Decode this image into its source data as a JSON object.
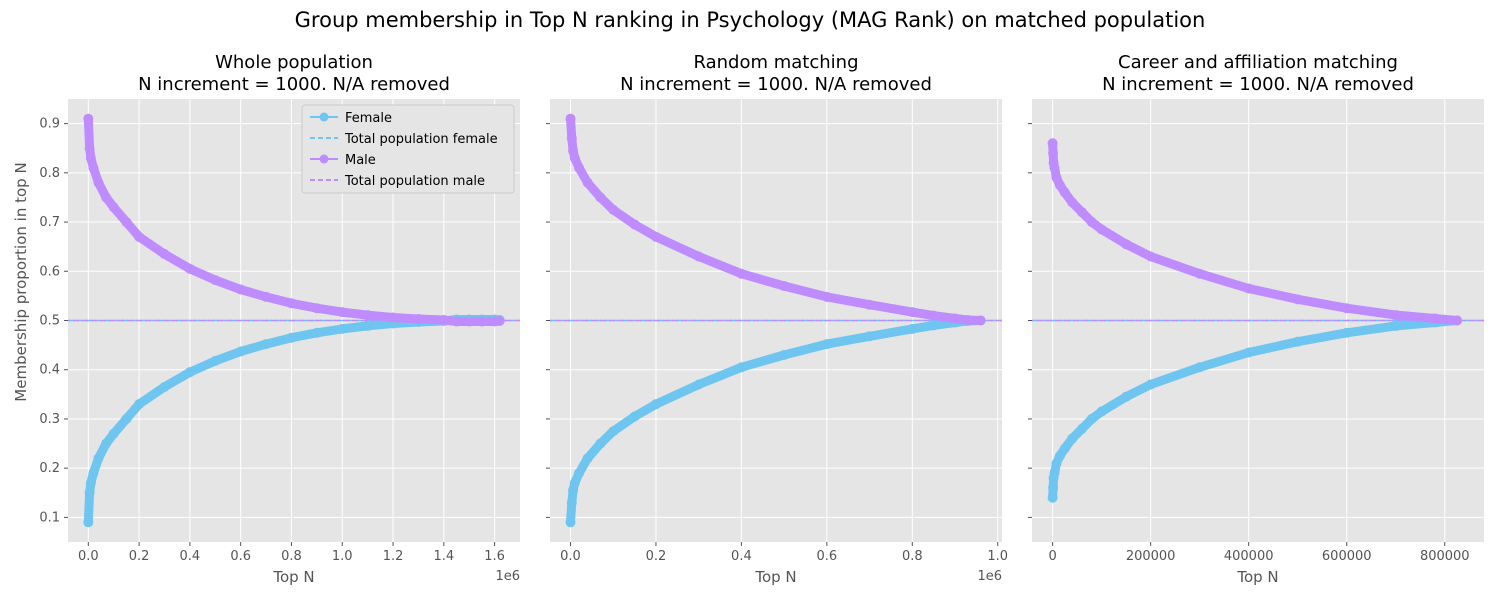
{
  "figure": {
    "suptitle": "Group membership in Top N ranking in Psychology (MAG Rank) on matched population",
    "ylabel": "Membership proportion in top N",
    "colors": {
      "female": "#6ec6f0",
      "male": "#bf8cff",
      "axes_bg": "#e5e5e5",
      "grid": "#ffffff",
      "tick_text": "#555555"
    }
  },
  "chart_data": [
    {
      "type": "line",
      "title_line1": "Whole population",
      "title_line2": "N increment = 1000. N/A removed",
      "xlabel": "Top N",
      "ylabel": "Membership proportion in top N",
      "x_multiplier_label": "1e6",
      "xlim": [
        -0.08,
        1.7
      ],
      "ylim": [
        0.05,
        0.95
      ],
      "x_ticks": [
        0.0,
        0.2,
        0.4,
        0.6,
        0.8,
        1.0,
        1.2,
        1.4,
        1.6
      ],
      "x_tick_labels": [
        "0.0",
        "0.2",
        "0.4",
        "0.6",
        "0.8",
        "1.0",
        "1.2",
        "1.4",
        "1.6"
      ],
      "y_ticks": [
        0.1,
        0.2,
        0.3,
        0.4,
        0.5,
        0.6,
        0.7,
        0.8,
        0.9
      ],
      "y_tick_labels": [
        "0.1",
        "0.2",
        "0.3",
        "0.4",
        "0.5",
        "0.6",
        "0.7",
        "0.8",
        "0.9"
      ],
      "grid": true,
      "show_y_tick_labels": true,
      "legend": {
        "placement": "upper-right",
        "entries": [
          {
            "label": "Female",
            "style": "line-marker",
            "series": "female"
          },
          {
            "label": "Total population female",
            "style": "dashed",
            "series": "female"
          },
          {
            "label": "Male",
            "style": "line-marker",
            "series": "male"
          },
          {
            "label": "Total population male",
            "style": "dashed",
            "series": "male"
          }
        ]
      },
      "baseline": 0.5,
      "series": [
        {
          "name": "Female",
          "color_key": "female",
          "x": [
            0.0,
            0.005,
            0.01,
            0.02,
            0.04,
            0.07,
            0.1,
            0.15,
            0.2,
            0.3,
            0.4,
            0.5,
            0.6,
            0.7,
            0.8,
            0.9,
            1.0,
            1.1,
            1.2,
            1.3,
            1.4,
            1.45,
            1.5,
            1.55,
            1.6,
            1.62
          ],
          "y": [
            0.09,
            0.15,
            0.17,
            0.19,
            0.22,
            0.25,
            0.27,
            0.3,
            0.33,
            0.365,
            0.395,
            0.418,
            0.437,
            0.452,
            0.465,
            0.475,
            0.483,
            0.489,
            0.494,
            0.497,
            0.499,
            0.502,
            0.502,
            0.502,
            0.502,
            0.501
          ]
        },
        {
          "name": "Male",
          "color_key": "male",
          "x": [
            0.0,
            0.005,
            0.01,
            0.02,
            0.04,
            0.07,
            0.1,
            0.15,
            0.2,
            0.3,
            0.4,
            0.5,
            0.6,
            0.7,
            0.8,
            0.9,
            1.0,
            1.1,
            1.2,
            1.3,
            1.4,
            1.45,
            1.5,
            1.55,
            1.6,
            1.62
          ],
          "y": [
            0.91,
            0.85,
            0.83,
            0.81,
            0.78,
            0.75,
            0.73,
            0.7,
            0.67,
            0.635,
            0.605,
            0.582,
            0.563,
            0.548,
            0.535,
            0.525,
            0.517,
            0.511,
            0.506,
            0.503,
            0.501,
            0.498,
            0.498,
            0.498,
            0.498,
            0.499
          ]
        }
      ]
    },
    {
      "type": "line",
      "title_line1": "Random matching",
      "title_line2": "N increment = 1000. N/A removed",
      "xlabel": "Top N",
      "x_multiplier_label": "1e6",
      "xlim": [
        -0.048,
        1.01
      ],
      "ylim": [
        0.05,
        0.95
      ],
      "x_ticks": [
        0.0,
        0.2,
        0.4,
        0.6,
        0.8,
        1.0
      ],
      "x_tick_labels": [
        "0.0",
        "0.2",
        "0.4",
        "0.6",
        "0.8",
        "1.0"
      ],
      "y_ticks": [
        0.1,
        0.2,
        0.3,
        0.4,
        0.5,
        0.6,
        0.7,
        0.8,
        0.9
      ],
      "grid": true,
      "show_y_tick_labels": false,
      "baseline": 0.5,
      "series": [
        {
          "name": "Female",
          "color_key": "female",
          "x": [
            0.0,
            0.003,
            0.006,
            0.01,
            0.02,
            0.04,
            0.07,
            0.1,
            0.15,
            0.2,
            0.3,
            0.4,
            0.5,
            0.6,
            0.7,
            0.8,
            0.85,
            0.9,
            0.93,
            0.96
          ],
          "y": [
            0.09,
            0.13,
            0.155,
            0.17,
            0.19,
            0.22,
            0.25,
            0.275,
            0.305,
            0.33,
            0.37,
            0.405,
            0.43,
            0.452,
            0.468,
            0.483,
            0.49,
            0.496,
            0.499,
            0.5
          ]
        },
        {
          "name": "Male",
          "color_key": "male",
          "x": [
            0.0,
            0.003,
            0.006,
            0.01,
            0.02,
            0.04,
            0.07,
            0.1,
            0.15,
            0.2,
            0.3,
            0.4,
            0.5,
            0.6,
            0.7,
            0.8,
            0.85,
            0.9,
            0.93,
            0.96
          ],
          "y": [
            0.91,
            0.87,
            0.845,
            0.83,
            0.81,
            0.78,
            0.75,
            0.725,
            0.695,
            0.67,
            0.63,
            0.595,
            0.57,
            0.548,
            0.532,
            0.517,
            0.51,
            0.504,
            0.501,
            0.5
          ]
        }
      ]
    },
    {
      "type": "line",
      "title_line1": "Career and affiliation matching",
      "title_line2": "N increment = 1000. N/A removed",
      "xlabel": "Top N",
      "xlim": [
        -42000,
        880000
      ],
      "ylim": [
        0.05,
        0.95
      ],
      "x_ticks": [
        0,
        200000,
        400000,
        600000,
        800000
      ],
      "x_tick_labels": [
        "0",
        "200000",
        "400000",
        "600000",
        "800000"
      ],
      "y_ticks": [
        0.1,
        0.2,
        0.3,
        0.4,
        0.5,
        0.6,
        0.7,
        0.8,
        0.9
      ],
      "grid": true,
      "show_y_tick_labels": false,
      "baseline": 0.5,
      "series": [
        {
          "name": "Female",
          "color_key": "female",
          "x": [
            0,
            1000,
            2000,
            4000,
            8000,
            15000,
            25000,
            40000,
            60000,
            80000,
            100000,
            150000,
            200000,
            300000,
            400000,
            500000,
            600000,
            700000,
            780000,
            825000
          ],
          "y": [
            0.14,
            0.16,
            0.18,
            0.19,
            0.21,
            0.225,
            0.24,
            0.26,
            0.28,
            0.3,
            0.315,
            0.345,
            0.37,
            0.405,
            0.435,
            0.457,
            0.475,
            0.489,
            0.496,
            0.5
          ]
        },
        {
          "name": "Male",
          "color_key": "male",
          "x": [
            0,
            1000,
            2000,
            4000,
            8000,
            15000,
            25000,
            40000,
            60000,
            80000,
            100000,
            150000,
            200000,
            300000,
            400000,
            500000,
            600000,
            700000,
            780000,
            825000
          ],
          "y": [
            0.86,
            0.84,
            0.82,
            0.81,
            0.79,
            0.775,
            0.76,
            0.74,
            0.72,
            0.7,
            0.685,
            0.655,
            0.63,
            0.595,
            0.565,
            0.543,
            0.525,
            0.511,
            0.504,
            0.5
          ]
        }
      ]
    }
  ]
}
